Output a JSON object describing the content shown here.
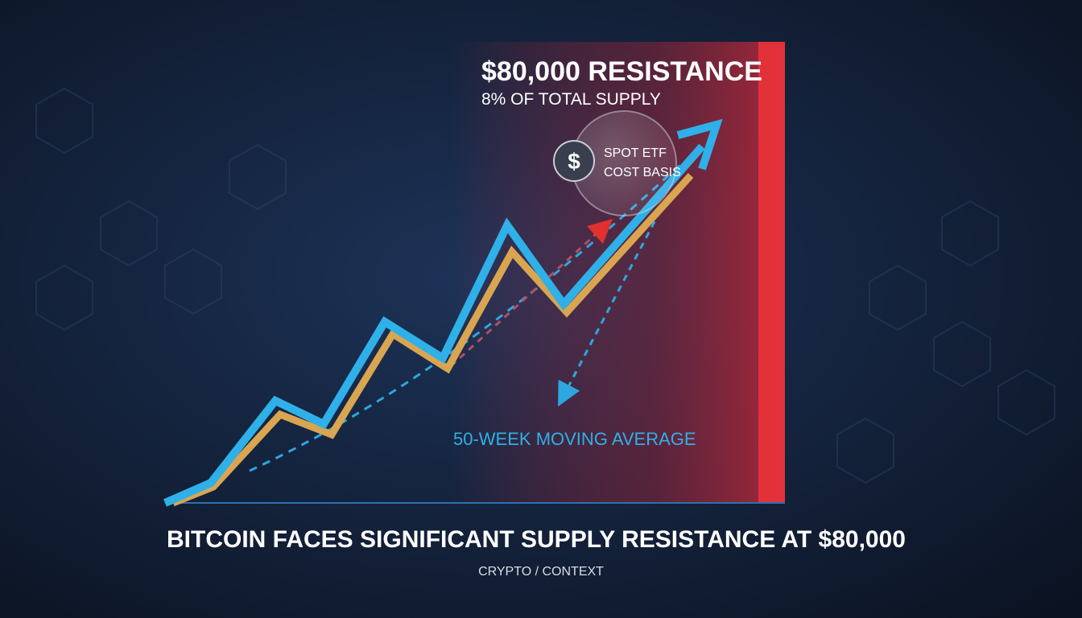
{
  "resistance": {
    "title": "$80,000 RESISTANCE",
    "subtitle": "8% OF TOTAL SUPPLY"
  },
  "badge": {
    "icon": "$",
    "lines": [
      "SPOT ETF",
      "COST BASIS"
    ]
  },
  "moving_average_label": "50-WEEK MOVING AVERAGE",
  "headline": "BITCOIN FACES SIGNIFICANT SUPPLY RESISTANCE AT $80,000",
  "category": "CRYPTO / CONTEXT"
}
